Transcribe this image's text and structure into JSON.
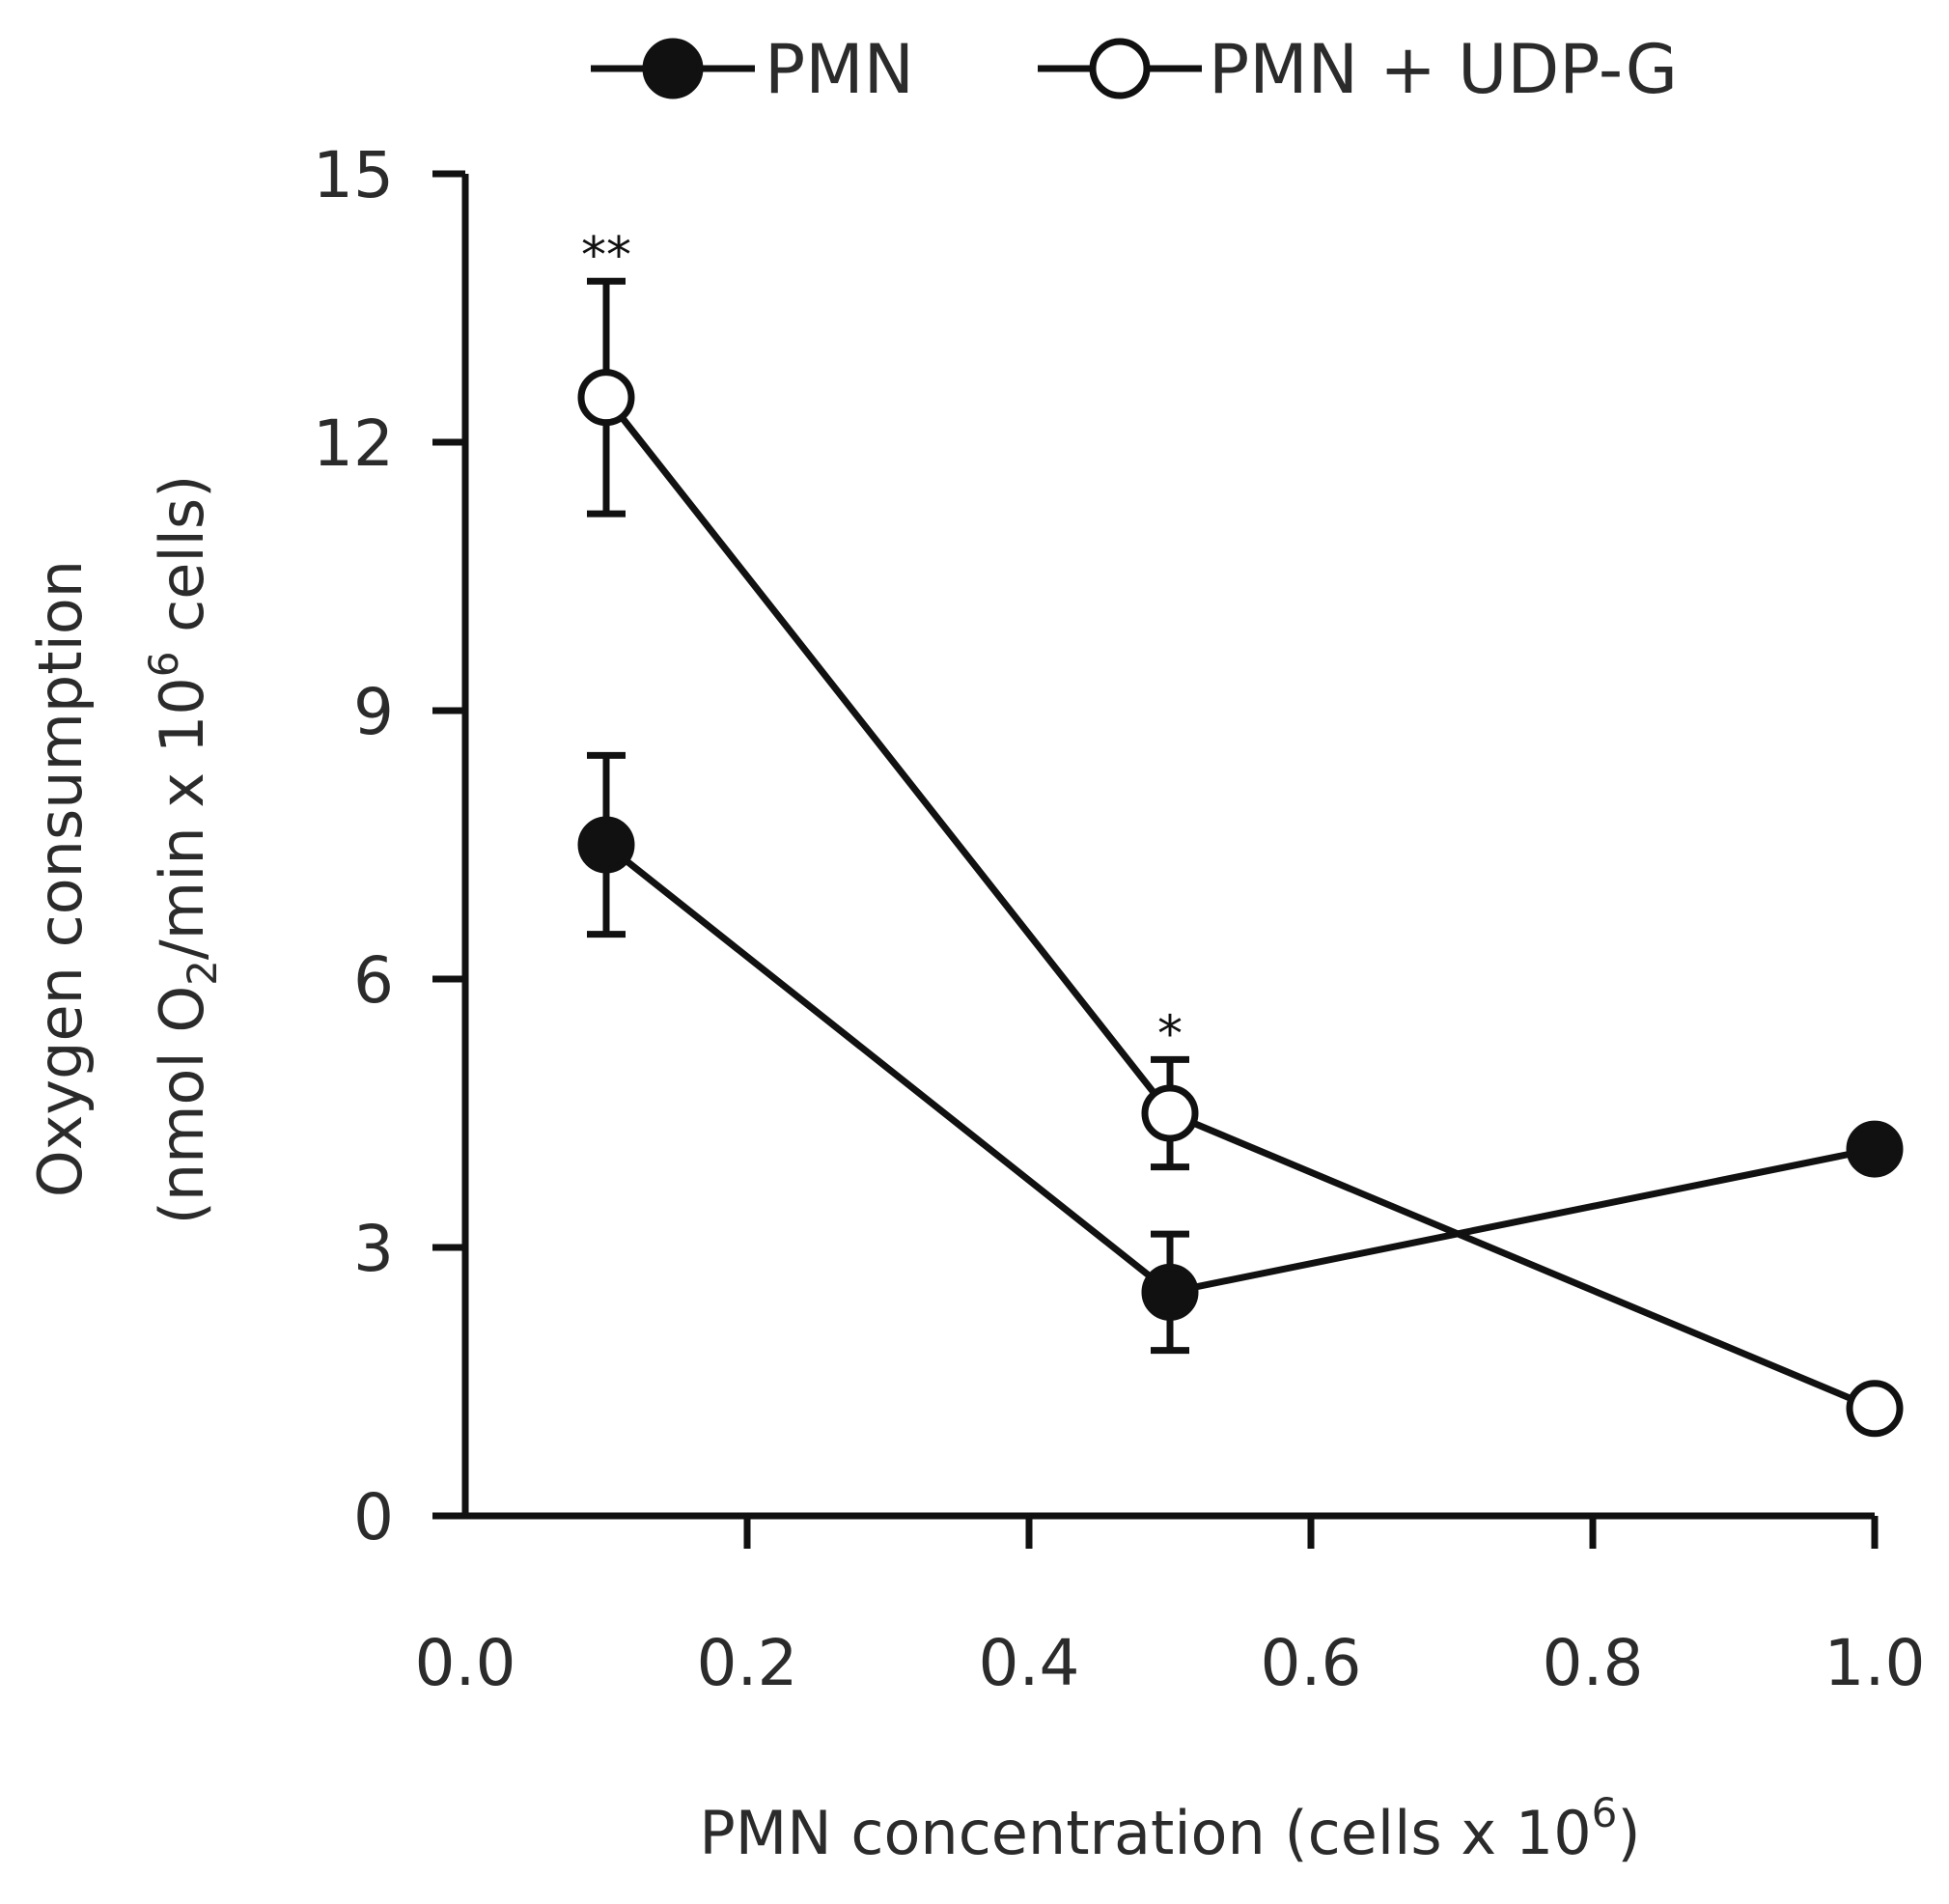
{
  "chart_data": {
    "type": "line",
    "title": "",
    "xlabel": "PMN concentration (cells x 10",
    "xlabel_sup": "6",
    "xlabel_end": ")",
    "ylabel_line1": "Oxygen consumption",
    "ylabel_line2_pre": "(nmol O",
    "ylabel_line2_sub": "2",
    "ylabel_line2_mid": "/min x 10",
    "ylabel_line2_sup": "6",
    "ylabel_line2_end": " cells)",
    "xlim": [
      0.0,
      1.0
    ],
    "ylim": [
      0,
      15
    ],
    "x_ticks": [
      0.0,
      0.2,
      0.4,
      0.6,
      0.8,
      1.0
    ],
    "x_tick_labels": [
      "0.0",
      "0.2",
      "0.4",
      "0.6",
      "0.8",
      "1.0"
    ],
    "y_ticks": [
      0,
      3,
      6,
      9,
      12,
      15
    ],
    "y_tick_labels": [
      "0",
      "3",
      "6",
      "9",
      "12",
      "15"
    ],
    "grid": false,
    "legend_position": "top",
    "x": [
      0.1,
      0.5,
      1.0
    ],
    "series": [
      {
        "name": "PMN",
        "marker": "filled-circle",
        "values": [
          7.5,
          2.5,
          4.1
        ],
        "error": [
          1.0,
          0.65,
          null
        ]
      },
      {
        "name": "PMN + UDP-G",
        "marker": "open-circle",
        "values": [
          12.5,
          4.5,
          1.2
        ],
        "error": [
          1.3,
          0.6,
          null
        ]
      }
    ],
    "annotations": [
      {
        "text": "**",
        "x": 0.1,
        "y": 14.2
      },
      {
        "text": "*",
        "x": 0.5,
        "y": 5.5
      }
    ],
    "colors": {
      "line": "#111111",
      "text": "#2b2b2b"
    }
  }
}
